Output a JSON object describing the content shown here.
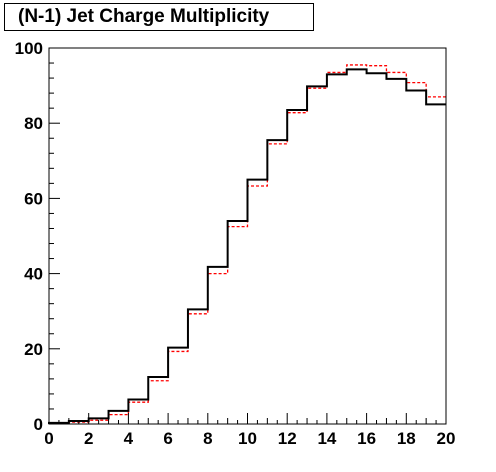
{
  "chart_data": {
    "type": "line",
    "title": "(N-1) Jet Charge Multiplicity",
    "xlabel": "",
    "ylabel": "",
    "xlim": [
      0,
      20
    ],
    "ylim": [
      0,
      100
    ],
    "x_ticks": [
      0,
      2,
      4,
      6,
      8,
      10,
      12,
      14,
      16,
      18,
      20
    ],
    "y_ticks": [
      0,
      20,
      40,
      60,
      80,
      100
    ],
    "grid": false,
    "legend": "none",
    "bin_edges": [
      0,
      1,
      2,
      3,
      4,
      5,
      6,
      7,
      8,
      9,
      10,
      11,
      12,
      13,
      14,
      15,
      16,
      17,
      18,
      19,
      20
    ],
    "series": [
      {
        "color": "#000000",
        "style": "solid-step",
        "values": [
          0.3,
          0.8,
          1.5,
          3.5,
          6.5,
          12.5,
          20.3,
          30.5,
          41.8,
          54.0,
          65.0,
          75.5,
          83.5,
          89.8,
          93.0,
          94.3,
          93.3,
          91.8,
          88.7,
          85.0
        ]
      },
      {
        "color": "#ff0000",
        "style": "dashed-step",
        "values": [
          0.2,
          0.5,
          1.0,
          2.5,
          5.8,
          11.5,
          19.3,
          29.3,
          40.0,
          52.5,
          63.3,
          74.5,
          82.8,
          89.3,
          93.5,
          95.5,
          95.3,
          93.5,
          90.8,
          87.0
        ]
      }
    ]
  }
}
